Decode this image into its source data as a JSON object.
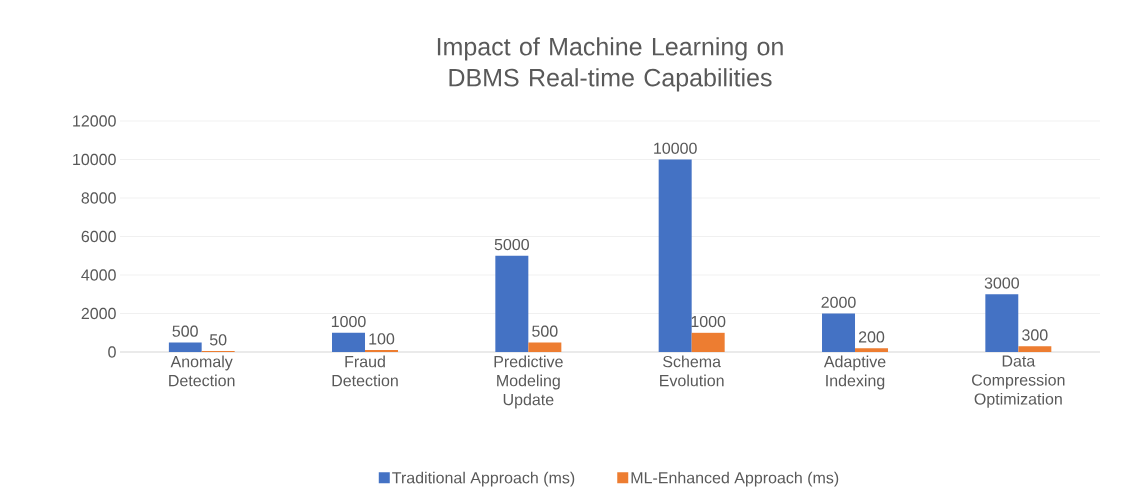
{
  "chart_data": {
    "type": "bar",
    "title": "Impact of Machine Learning on DBMS Real-time Capabilities",
    "categories": [
      "Anomaly Detection",
      "Fraud Detection",
      "Predictive Modeling Update",
      "Schema Evolution",
      "Adaptive Indexing",
      "Data Compression Optimization"
    ],
    "series": [
      {
        "name": "Traditional Approach (ms)",
        "color": "#4472c4",
        "values": [
          500,
          1000,
          5000,
          10000,
          2000,
          3000
        ]
      },
      {
        "name": "ML-Enhanced Approach (ms)",
        "color": "#ed7d31",
        "values": [
          50,
          100,
          500,
          1000,
          200,
          300
        ]
      }
    ],
    "ylim": [
      0,
      12000
    ],
    "yticks": [
      0,
      2000,
      4000,
      6000,
      8000,
      10000,
      12000
    ],
    "grid": "y",
    "legend": "bottom",
    "data_labels": true
  }
}
